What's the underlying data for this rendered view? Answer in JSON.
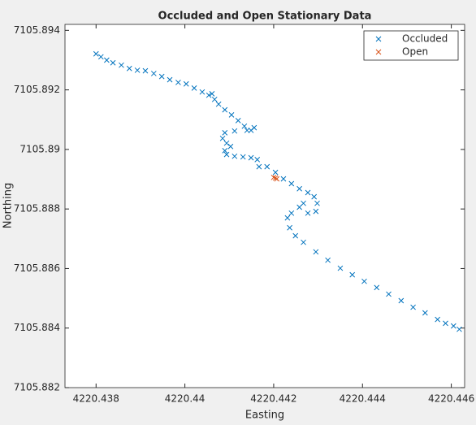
{
  "chart_data": {
    "type": "scatter",
    "title": "Occluded and Open Stationary Data",
    "x_label": "Easting",
    "y_label": "Northing",
    "xlim": [
      4220.4373,
      4220.4463
    ],
    "ylim": [
      7105.882,
      7105.8942
    ],
    "xticks": [
      4220.438,
      4220.44,
      4220.442,
      4220.444,
      4220.446
    ],
    "yticks": [
      7105.882,
      7105.884,
      7105.886,
      7105.888,
      7105.89,
      7105.892,
      7105.894
    ],
    "legend": "northeast",
    "marker": "x",
    "series": [
      {
        "name": "Occluded",
        "color": "#0072bd",
        "x": [
          4220.438,
          4220.43811,
          4220.43824,
          4220.43838,
          4220.43857,
          4220.43875,
          4220.43893,
          4220.43911,
          4220.4393,
          4220.43948,
          4220.43966,
          4220.43985,
          4220.44003,
          4220.44021,
          4220.44039,
          4220.44054,
          4220.44061,
          4220.44067,
          4220.44076,
          4220.4409,
          4220.44105,
          4220.4412,
          4220.44134,
          4220.44149,
          4220.44156,
          4220.4414,
          4220.44112,
          4220.4409,
          4220.44085,
          4220.44094,
          4220.44103,
          4220.4409,
          4220.44094,
          4220.44112,
          4220.44131,
          4220.44149,
          4220.44163,
          4220.44167,
          4220.44185,
          4220.44204,
          4220.44222,
          4220.4424,
          4220.44258,
          4220.44277,
          4220.44291,
          4220.44298,
          4220.44295,
          4220.44277,
          4220.44267,
          4220.44258,
          4220.4424,
          4220.44231,
          4220.44236,
          4220.44249,
          4220.44267,
          4220.44295,
          4220.44322,
          4220.4435,
          4220.44377,
          4220.44404,
          4220.44432,
          4220.44459,
          4220.44487,
          4220.44514,
          4220.44541,
          4220.44569,
          4220.44587,
          4220.44605,
          4220.44618
        ],
        "values": [
          7105.89321,
          7105.89311,
          7105.893,
          7105.89291,
          7105.89283,
          7105.89272,
          7105.89266,
          7105.89264,
          7105.89255,
          7105.89245,
          7105.89234,
          7105.89225,
          7105.8922,
          7105.89206,
          7105.89193,
          7105.89182,
          7105.89187,
          7105.89168,
          7105.89152,
          7105.89133,
          7105.89116,
          7105.89097,
          7105.89078,
          7105.89064,
          7105.89073,
          7105.89064,
          7105.89062,
          7105.89056,
          7105.89037,
          7105.89021,
          7105.8901,
          7105.88996,
          7105.88983,
          7105.88977,
          7105.88975,
          7105.88972,
          7105.88966,
          7105.88942,
          7105.88942,
          7105.88923,
          7105.88901,
          7105.88885,
          7105.88868,
          7105.88855,
          7105.88841,
          7105.88819,
          7105.88792,
          7105.88786,
          7105.88819,
          7105.88806,
          7105.88786,
          7105.8877,
          7105.88737,
          7105.8871,
          7105.88688,
          7105.88656,
          7105.88628,
          7105.88601,
          7105.88579,
          7105.88557,
          7105.88536,
          7105.88514,
          7105.88492,
          7105.8847,
          7105.88451,
          7105.88429,
          7105.88416,
          7105.88407,
          7105.88396
        ]
      },
      {
        "name": "Open",
        "color": "#d95319",
        "x": [
          4220.442,
          4220.44204,
          4220.44207
        ],
        "values": [
          7105.88906,
          7105.88904,
          7105.88901
        ]
      }
    ]
  }
}
